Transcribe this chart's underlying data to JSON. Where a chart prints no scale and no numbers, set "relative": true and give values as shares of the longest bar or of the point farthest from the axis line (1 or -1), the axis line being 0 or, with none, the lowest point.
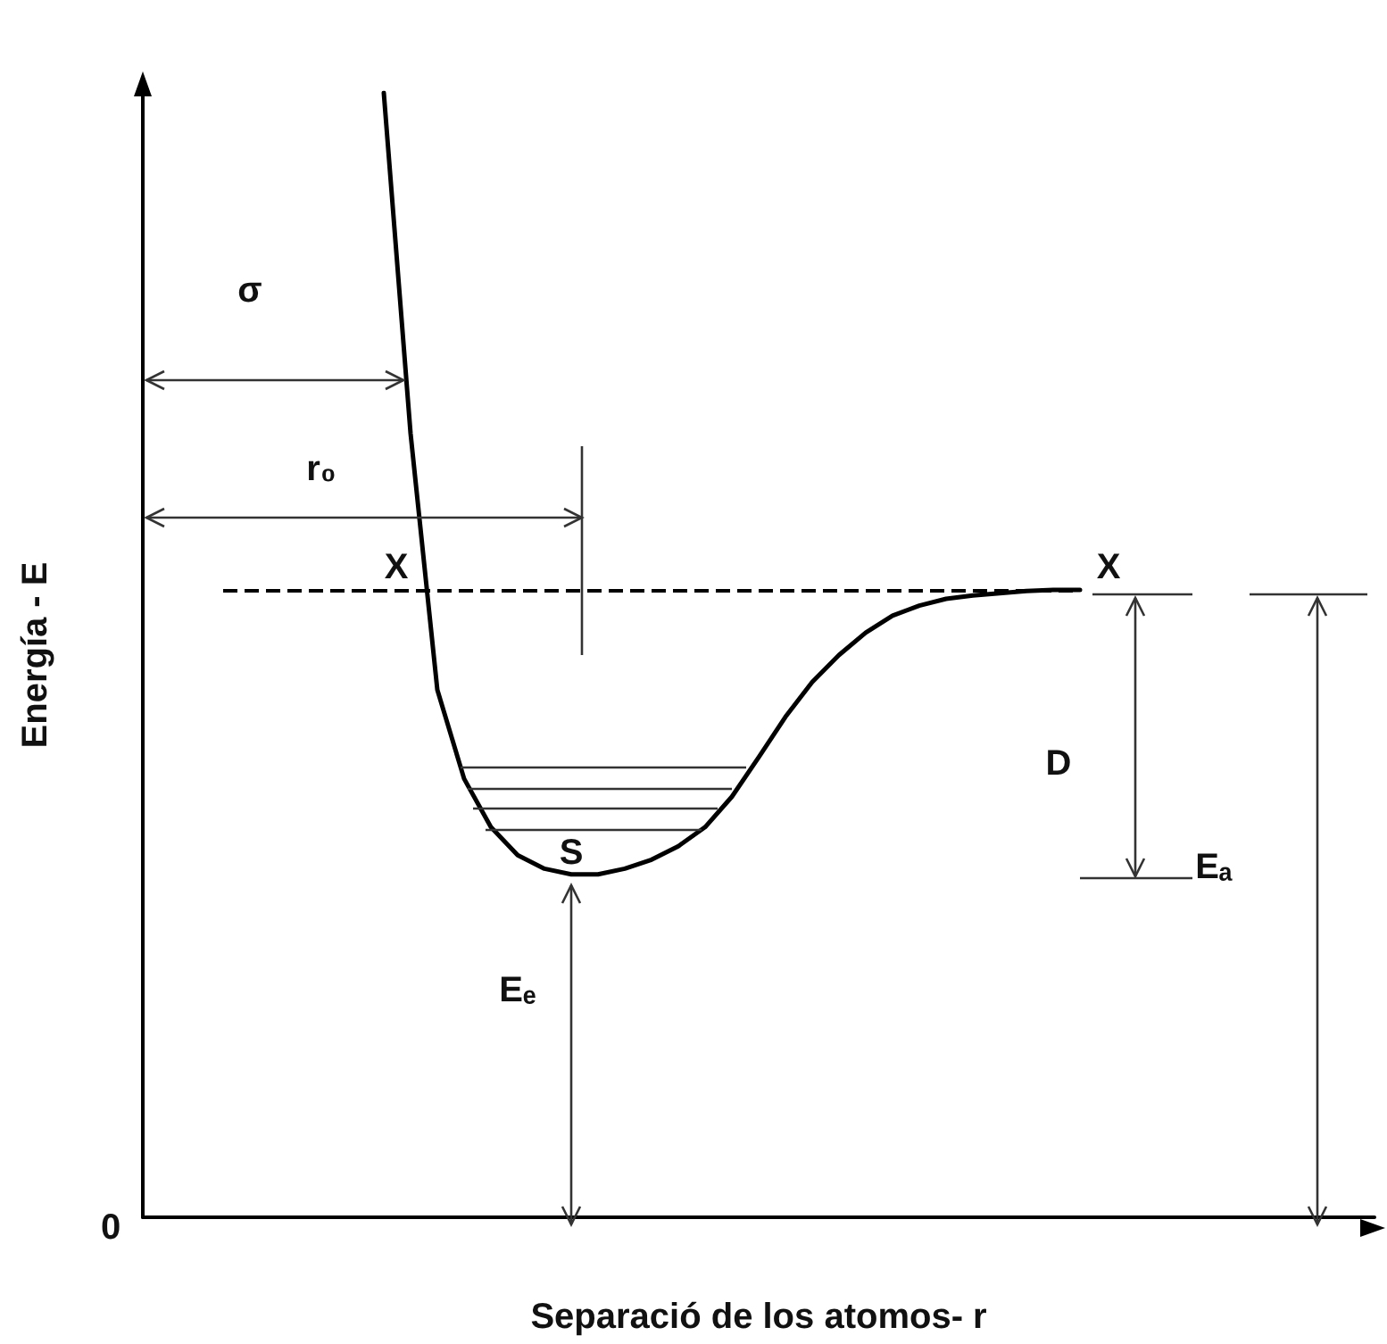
{
  "chart_data": {
    "type": "line",
    "relative": true,
    "xlabel": "Separació de los atomos- r",
    "ylabel": "Energía - E",
    "marker": "none",
    "line_style": "solid",
    "categories": [
      null,
      null,
      null,
      null,
      null,
      null,
      null,
      null,
      null,
      null,
      null,
      null,
      null,
      null,
      null,
      null,
      null,
      null,
      null,
      null,
      null,
      null,
      null,
      null,
      null,
      null,
      null,
      null,
      null,
      null,
      null,
      null,
      null,
      null,
      null,
      null,
      null,
      null,
      null,
      null,
      null,
      null,
      null,
      null,
      null,
      null,
      null
    ],
    "series": [
      {
        "color": "#000000",
        "values": [
          null,
          null,
          null,
          null,
          null,
          null,
          null,
          null,
          null,
          1.0,
          0.697,
          0.469,
          0.39,
          0.347,
          0.322,
          0.31,
          0.305,
          0.305,
          0.31,
          0.318,
          0.33,
          0.347,
          0.374,
          0.409,
          0.445,
          0.476,
          0.5,
          0.52,
          0.535,
          0.544,
          0.55,
          0.553,
          0.555,
          0.557,
          0.558,
          0.558,
          null,
          null,
          null,
          null,
          null,
          null,
          null,
          null,
          null,
          null,
          null
        ]
      }
    ],
    "ref_lines": [
      {
        "axis": "y",
        "value": 0.558,
        "line_style": "dashed",
        "color": "#000000"
      }
    ],
    "annotations": [
      "σ",
      "r₀",
      "X",
      "X",
      "D",
      "Eₐ",
      "Eₑ",
      "S",
      "0"
    ]
  }
}
